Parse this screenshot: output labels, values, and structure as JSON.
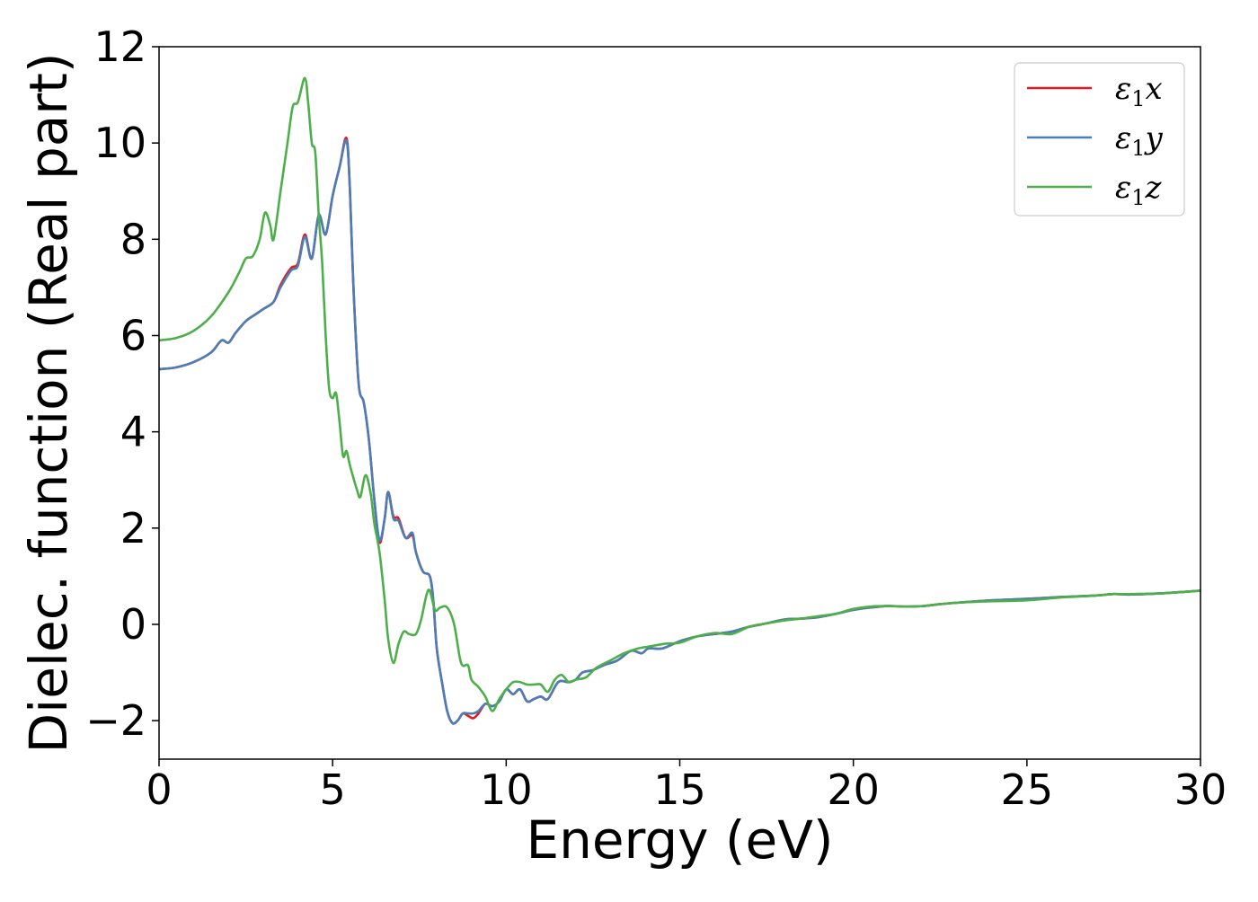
{
  "chart_data": {
    "type": "line",
    "xlabel": "Energy (eV)",
    "ylabel": "Dielec. function (Real part)",
    "xlim": [
      0,
      30
    ],
    "ylim": [
      -2.8,
      12
    ],
    "xticks": [
      0,
      5,
      10,
      15,
      20,
      25,
      30
    ],
    "yticks": [
      -2,
      0,
      2,
      4,
      6,
      8,
      10,
      12
    ],
    "xtick_labels": [
      "0",
      "5",
      "10",
      "15",
      "20",
      "25",
      "30"
    ],
    "ytick_labels": [
      "−2",
      "0",
      "2",
      "4",
      "6",
      "8",
      "10",
      "12"
    ],
    "grid": false,
    "legend_position": "top-right",
    "series": [
      {
        "name": "ε1x",
        "legend": {
          "symbol": "ε",
          "sub": "1",
          "var": "x"
        },
        "color": "#e41a1c",
        "points": [
          [
            0,
            5.3
          ],
          [
            0.5,
            5.34
          ],
          [
            1.0,
            5.45
          ],
          [
            1.5,
            5.65
          ],
          [
            1.8,
            5.9
          ],
          [
            2.0,
            5.85
          ],
          [
            2.2,
            6.05
          ],
          [
            2.5,
            6.3
          ],
          [
            2.8,
            6.45
          ],
          [
            3.0,
            6.55
          ],
          [
            3.3,
            6.7
          ],
          [
            3.5,
            7.05
          ],
          [
            3.8,
            7.4
          ],
          [
            4.0,
            7.5
          ],
          [
            4.2,
            8.1
          ],
          [
            4.4,
            7.6
          ],
          [
            4.6,
            8.5
          ],
          [
            4.8,
            8.1
          ],
          [
            5.0,
            8.9
          ],
          [
            5.2,
            9.5
          ],
          [
            5.4,
            10.1
          ],
          [
            5.5,
            9.0
          ],
          [
            5.6,
            7.0
          ],
          [
            5.75,
            5.0
          ],
          [
            5.9,
            4.6
          ],
          [
            6.05,
            3.8
          ],
          [
            6.2,
            2.6
          ],
          [
            6.35,
            1.7
          ],
          [
            6.5,
            2.2
          ],
          [
            6.6,
            2.75
          ],
          [
            6.75,
            2.25
          ],
          [
            6.9,
            2.2
          ],
          [
            7.1,
            1.8
          ],
          [
            7.3,
            1.85
          ],
          [
            7.4,
            1.5
          ],
          [
            7.6,
            1.1
          ],
          [
            7.8,
            1.0
          ],
          [
            7.9,
            0.5
          ],
          [
            8.0,
            -0.5
          ],
          [
            8.15,
            -1.2
          ],
          [
            8.3,
            -1.8
          ],
          [
            8.45,
            -2.05
          ],
          [
            8.6,
            -2.0
          ],
          [
            8.75,
            -1.85
          ],
          [
            8.9,
            -1.9
          ],
          [
            9.05,
            -1.95
          ],
          [
            9.2,
            -1.85
          ],
          [
            9.4,
            -1.65
          ],
          [
            9.6,
            -1.7
          ],
          [
            9.8,
            -1.6
          ],
          [
            10.0,
            -1.35
          ],
          [
            10.2,
            -1.45
          ],
          [
            10.4,
            -1.35
          ],
          [
            10.6,
            -1.6
          ],
          [
            10.8,
            -1.55
          ],
          [
            11.0,
            -1.5
          ],
          [
            11.2,
            -1.55
          ],
          [
            11.5,
            -1.2
          ],
          [
            11.8,
            -1.2
          ],
          [
            12.0,
            -1.15
          ],
          [
            12.2,
            -1.0
          ],
          [
            12.5,
            -0.95
          ],
          [
            12.8,
            -0.85
          ],
          [
            13.2,
            -0.75
          ],
          [
            13.6,
            -0.55
          ],
          [
            13.9,
            -0.6
          ],
          [
            14.1,
            -0.5
          ],
          [
            14.5,
            -0.5
          ],
          [
            15.0,
            -0.35
          ],
          [
            15.5,
            -0.25
          ],
          [
            16.0,
            -0.2
          ],
          [
            16.5,
            -0.15
          ],
          [
            17.0,
            -0.05
          ],
          [
            17.5,
            0.02
          ],
          [
            18.0,
            0.1
          ],
          [
            18.5,
            0.12
          ],
          [
            19.0,
            0.15
          ],
          [
            19.5,
            0.22
          ],
          [
            20.0,
            0.3
          ],
          [
            20.5,
            0.35
          ],
          [
            21.0,
            0.38
          ],
          [
            21.5,
            0.37
          ],
          [
            22.0,
            0.38
          ],
          [
            22.5,
            0.42
          ],
          [
            23.0,
            0.45
          ],
          [
            24.0,
            0.5
          ],
          [
            25.0,
            0.53
          ],
          [
            26.0,
            0.57
          ],
          [
            27.0,
            0.6
          ],
          [
            27.5,
            0.63
          ],
          [
            28.0,
            0.62
          ],
          [
            29.0,
            0.65
          ],
          [
            30.0,
            0.7
          ]
        ]
      },
      {
        "name": "ε1y",
        "legend": {
          "symbol": "ε",
          "sub": "1",
          "var": "y"
        },
        "color": "#4a7eb8",
        "points": [
          [
            0,
            5.3
          ],
          [
            0.5,
            5.34
          ],
          [
            1.0,
            5.45
          ],
          [
            1.5,
            5.65
          ],
          [
            1.8,
            5.9
          ],
          [
            2.0,
            5.85
          ],
          [
            2.2,
            6.05
          ],
          [
            2.5,
            6.3
          ],
          [
            2.8,
            6.45
          ],
          [
            3.0,
            6.55
          ],
          [
            3.3,
            6.7
          ],
          [
            3.5,
            7.0
          ],
          [
            3.8,
            7.35
          ],
          [
            4.0,
            7.45
          ],
          [
            4.2,
            8.05
          ],
          [
            4.4,
            7.6
          ],
          [
            4.6,
            8.5
          ],
          [
            4.8,
            8.1
          ],
          [
            5.0,
            8.9
          ],
          [
            5.2,
            9.5
          ],
          [
            5.4,
            10.05
          ],
          [
            5.5,
            9.0
          ],
          [
            5.6,
            7.0
          ],
          [
            5.75,
            5.0
          ],
          [
            5.9,
            4.6
          ],
          [
            6.05,
            3.8
          ],
          [
            6.2,
            2.6
          ],
          [
            6.35,
            1.75
          ],
          [
            6.5,
            2.2
          ],
          [
            6.6,
            2.75
          ],
          [
            6.75,
            2.2
          ],
          [
            6.9,
            2.15
          ],
          [
            7.1,
            1.8
          ],
          [
            7.3,
            1.9
          ],
          [
            7.4,
            1.5
          ],
          [
            7.6,
            1.1
          ],
          [
            7.8,
            1.0
          ],
          [
            7.9,
            0.5
          ],
          [
            8.0,
            -0.5
          ],
          [
            8.15,
            -1.2
          ],
          [
            8.3,
            -1.8
          ],
          [
            8.45,
            -2.05
          ],
          [
            8.6,
            -2.0
          ],
          [
            8.75,
            -1.85
          ],
          [
            8.9,
            -1.85
          ],
          [
            9.05,
            -1.85
          ],
          [
            9.2,
            -1.8
          ],
          [
            9.4,
            -1.65
          ],
          [
            9.6,
            -1.7
          ],
          [
            9.8,
            -1.6
          ],
          [
            10.0,
            -1.35
          ],
          [
            10.2,
            -1.45
          ],
          [
            10.4,
            -1.35
          ],
          [
            10.6,
            -1.6
          ],
          [
            10.8,
            -1.55
          ],
          [
            11.0,
            -1.5
          ],
          [
            11.2,
            -1.55
          ],
          [
            11.5,
            -1.2
          ],
          [
            11.8,
            -1.2
          ],
          [
            12.0,
            -1.15
          ],
          [
            12.2,
            -1.0
          ],
          [
            12.5,
            -0.95
          ],
          [
            12.8,
            -0.85
          ],
          [
            13.2,
            -0.75
          ],
          [
            13.6,
            -0.55
          ],
          [
            13.9,
            -0.6
          ],
          [
            14.1,
            -0.5
          ],
          [
            14.5,
            -0.5
          ],
          [
            15.0,
            -0.35
          ],
          [
            15.5,
            -0.25
          ],
          [
            16.0,
            -0.2
          ],
          [
            16.5,
            -0.15
          ],
          [
            17.0,
            -0.05
          ],
          [
            17.5,
            0.02
          ],
          [
            18.0,
            0.1
          ],
          [
            18.5,
            0.12
          ],
          [
            19.0,
            0.15
          ],
          [
            19.5,
            0.22
          ],
          [
            20.0,
            0.3
          ],
          [
            20.5,
            0.35
          ],
          [
            21.0,
            0.38
          ],
          [
            21.5,
            0.37
          ],
          [
            22.0,
            0.38
          ],
          [
            22.5,
            0.42
          ],
          [
            23.0,
            0.45
          ],
          [
            24.0,
            0.5
          ],
          [
            25.0,
            0.53
          ],
          [
            26.0,
            0.57
          ],
          [
            27.0,
            0.6
          ],
          [
            27.5,
            0.63
          ],
          [
            28.0,
            0.62
          ],
          [
            29.0,
            0.65
          ],
          [
            30.0,
            0.7
          ]
        ]
      },
      {
        "name": "ε1z",
        "legend": {
          "symbol": "ε",
          "sub": "1",
          "var": "z"
        },
        "color": "#4daf4a",
        "points": [
          [
            0,
            5.9
          ],
          [
            0.5,
            5.95
          ],
          [
            1.0,
            6.1
          ],
          [
            1.5,
            6.4
          ],
          [
            2.0,
            6.9
          ],
          [
            2.3,
            7.3
          ],
          [
            2.5,
            7.6
          ],
          [
            2.7,
            7.65
          ],
          [
            2.9,
            8.0
          ],
          [
            3.05,
            8.55
          ],
          [
            3.2,
            8.3
          ],
          [
            3.3,
            8.0
          ],
          [
            3.5,
            9.0
          ],
          [
            3.7,
            10.0
          ],
          [
            3.85,
            10.75
          ],
          [
            4.0,
            10.85
          ],
          [
            4.2,
            11.35
          ],
          [
            4.3,
            10.8
          ],
          [
            4.4,
            10.0
          ],
          [
            4.5,
            9.8
          ],
          [
            4.6,
            8.5
          ],
          [
            4.7,
            7.5
          ],
          [
            4.8,
            6.0
          ],
          [
            4.9,
            4.9
          ],
          [
            5.0,
            4.7
          ],
          [
            5.1,
            4.8
          ],
          [
            5.2,
            4.2
          ],
          [
            5.3,
            3.5
          ],
          [
            5.4,
            3.6
          ],
          [
            5.5,
            3.3
          ],
          [
            5.7,
            2.8
          ],
          [
            5.8,
            2.65
          ],
          [
            5.95,
            3.1
          ],
          [
            6.1,
            2.7
          ],
          [
            6.2,
            2.1
          ],
          [
            6.35,
            1.5
          ],
          [
            6.5,
            0.5
          ],
          [
            6.6,
            -0.3
          ],
          [
            6.75,
            -0.8
          ],
          [
            6.9,
            -0.4
          ],
          [
            7.05,
            -0.15
          ],
          [
            7.2,
            -0.2
          ],
          [
            7.4,
            -0.2
          ],
          [
            7.55,
            0.1
          ],
          [
            7.7,
            0.6
          ],
          [
            7.8,
            0.7
          ],
          [
            7.95,
            0.3
          ],
          [
            8.1,
            0.35
          ],
          [
            8.3,
            0.35
          ],
          [
            8.5,
            0.0
          ],
          [
            8.7,
            -0.8
          ],
          [
            8.9,
            -0.85
          ],
          [
            9.0,
            -1.15
          ],
          [
            9.2,
            -1.3
          ],
          [
            9.4,
            -1.5
          ],
          [
            9.6,
            -1.8
          ],
          [
            9.8,
            -1.55
          ],
          [
            10.0,
            -1.35
          ],
          [
            10.2,
            -1.2
          ],
          [
            10.4,
            -1.2
          ],
          [
            10.6,
            -1.25
          ],
          [
            10.8,
            -1.25
          ],
          [
            11.0,
            -1.25
          ],
          [
            11.2,
            -1.4
          ],
          [
            11.4,
            -1.15
          ],
          [
            11.6,
            -1.05
          ],
          [
            11.8,
            -1.2
          ],
          [
            12.0,
            -1.15
          ],
          [
            12.3,
            -1.1
          ],
          [
            12.6,
            -0.9
          ],
          [
            13.0,
            -0.75
          ],
          [
            13.4,
            -0.6
          ],
          [
            13.8,
            -0.5
          ],
          [
            14.2,
            -0.45
          ],
          [
            14.6,
            -0.4
          ],
          [
            15.0,
            -0.38
          ],
          [
            15.5,
            -0.25
          ],
          [
            16.0,
            -0.18
          ],
          [
            16.5,
            -0.2
          ],
          [
            17.0,
            -0.05
          ],
          [
            17.5,
            0.02
          ],
          [
            18.0,
            0.08
          ],
          [
            18.5,
            0.12
          ],
          [
            19.0,
            0.17
          ],
          [
            19.5,
            0.22
          ],
          [
            20.0,
            0.32
          ],
          [
            20.5,
            0.37
          ],
          [
            21.0,
            0.38
          ],
          [
            21.5,
            0.37
          ],
          [
            22.0,
            0.38
          ],
          [
            22.5,
            0.42
          ],
          [
            23.0,
            0.45
          ],
          [
            24.0,
            0.48
          ],
          [
            25.0,
            0.5
          ],
          [
            26.0,
            0.56
          ],
          [
            27.0,
            0.6
          ],
          [
            27.5,
            0.63
          ],
          [
            28.0,
            0.63
          ],
          [
            29.0,
            0.65
          ],
          [
            30.0,
            0.7
          ]
        ]
      }
    ]
  }
}
